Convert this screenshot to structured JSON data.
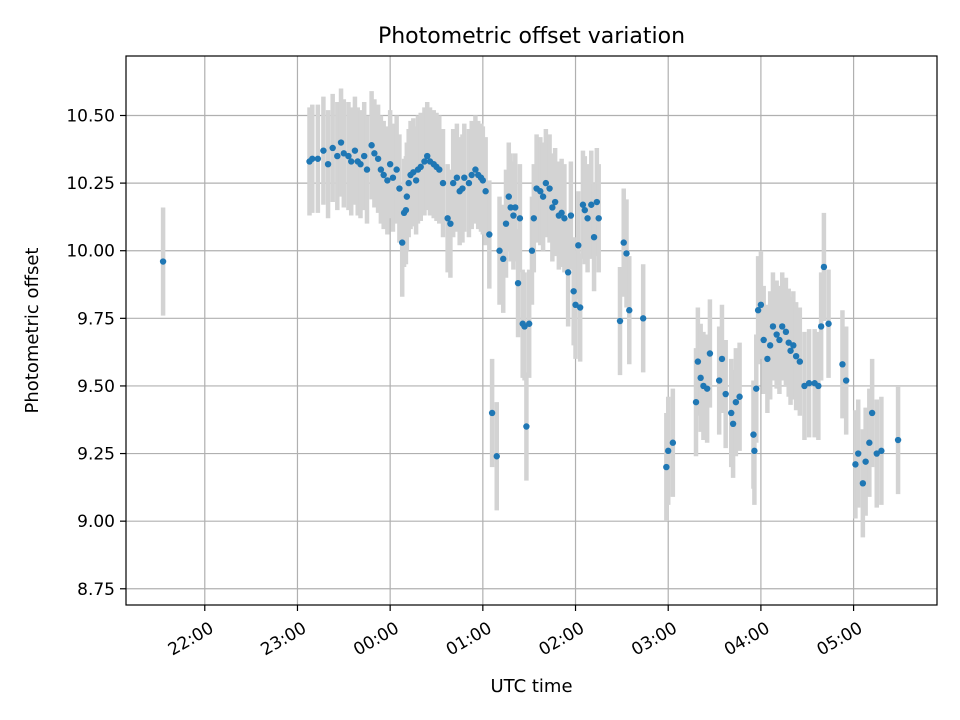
{
  "chart_data": {
    "type": "scatter",
    "title": "Photometric offset variation",
    "xlabel": "UTC time",
    "ylabel": "Photometric offset",
    "x_unit": "hours since 00:00 UTC",
    "xlim": [
      -2.85,
      5.9
    ],
    "ylim": [
      8.69,
      10.72
    ],
    "grid": true,
    "x_ticks": [
      -2,
      -1,
      0,
      1,
      2,
      3,
      4,
      5
    ],
    "x_tick_labels": [
      "22:00",
      "23:00",
      "00:00",
      "01:00",
      "02:00",
      "03:00",
      "04:00",
      "05:00"
    ],
    "y_ticks": [
      8.75,
      9.0,
      9.25,
      9.5,
      9.75,
      10.0,
      10.25,
      10.5
    ],
    "y_tick_labels": [
      "8.75",
      "9.00",
      "9.25",
      "9.50",
      "9.75",
      "10.00",
      "10.25",
      "10.50"
    ],
    "error_band": 0.2,
    "series": [
      {
        "name": "offset",
        "color": "#1f77b4",
        "error_color": "#d3d3d3",
        "x": [
          -2.45,
          -0.87,
          -0.84,
          -0.78,
          -0.72,
          -0.67,
          -0.62,
          -0.57,
          -0.53,
          -0.5,
          -0.45,
          -0.42,
          -0.38,
          -0.35,
          -0.32,
          -0.28,
          -0.25,
          -0.2,
          -0.17,
          -0.13,
          -0.1,
          -0.07,
          -0.03,
          0.0,
          0.03,
          0.07,
          0.1,
          0.13,
          0.15,
          0.17,
          0.18,
          0.2,
          0.22,
          0.25,
          0.28,
          0.3,
          0.33,
          0.37,
          0.4,
          0.43,
          0.47,
          0.5,
          0.53,
          0.57,
          0.62,
          0.65,
          0.68,
          0.72,
          0.75,
          0.78,
          0.8,
          0.85,
          0.88,
          0.92,
          0.95,
          0.98,
          1.0,
          1.03,
          1.07,
          1.1,
          1.15,
          1.18,
          1.22,
          1.25,
          1.28,
          1.3,
          1.33,
          1.35,
          1.38,
          1.4,
          1.43,
          1.45,
          1.47,
          1.5,
          1.53,
          1.55,
          1.58,
          1.62,
          1.65,
          1.68,
          1.72,
          1.75,
          1.78,
          1.82,
          1.85,
          1.88,
          1.92,
          1.95,
          1.98,
          2.0,
          2.03,
          2.05,
          2.08,
          2.1,
          2.13,
          2.17,
          2.2,
          2.23,
          2.25,
          2.48,
          2.52,
          2.55,
          2.58,
          2.73,
          2.98,
          3.0,
          3.05,
          3.3,
          3.32,
          3.35,
          3.38,
          3.42,
          3.45,
          3.55,
          3.58,
          3.62,
          3.68,
          3.7,
          3.73,
          3.77,
          3.92,
          3.93,
          3.95,
          3.97,
          4.0,
          4.03,
          4.07,
          4.1,
          4.13,
          4.17,
          4.2,
          4.23,
          4.27,
          4.3,
          4.32,
          4.35,
          4.38,
          4.42,
          4.47,
          4.52,
          4.58,
          4.62,
          4.65,
          4.68,
          4.73,
          4.88,
          4.92,
          5.02,
          5.05,
          5.1,
          5.13,
          5.17,
          5.2,
          5.25,
          5.3,
          5.48
        ],
        "y": [
          9.96,
          10.33,
          10.34,
          10.34,
          10.37,
          10.32,
          10.38,
          10.35,
          10.4,
          10.36,
          10.35,
          10.33,
          10.37,
          10.33,
          10.32,
          10.35,
          10.3,
          10.39,
          10.36,
          10.34,
          10.3,
          10.28,
          10.26,
          10.32,
          10.27,
          10.3,
          10.23,
          10.03,
          10.14,
          10.15,
          10.2,
          10.25,
          10.28,
          10.29,
          10.26,
          10.3,
          10.31,
          10.33,
          10.35,
          10.33,
          10.32,
          10.31,
          10.3,
          10.25,
          10.12,
          10.1,
          10.25,
          10.27,
          10.22,
          10.23,
          10.27,
          10.25,
          10.28,
          10.3,
          10.28,
          10.27,
          10.26,
          10.22,
          10.06,
          9.4,
          9.24,
          10.0,
          9.97,
          10.1,
          10.2,
          10.16,
          10.13,
          10.16,
          9.88,
          10.12,
          9.73,
          9.72,
          9.35,
          9.73,
          10.0,
          10.12,
          10.23,
          10.22,
          10.2,
          10.25,
          10.23,
          10.16,
          10.18,
          10.13,
          10.14,
          10.12,
          9.92,
          10.13,
          9.85,
          9.8,
          10.02,
          9.79,
          10.17,
          10.15,
          10.12,
          10.17,
          10.05,
          10.18,
          10.12,
          9.74,
          10.03,
          9.99,
          9.78,
          9.75,
          9.2,
          9.26,
          9.29,
          9.44,
          9.59,
          9.53,
          9.5,
          9.49,
          9.62,
          9.52,
          9.6,
          9.47,
          9.4,
          9.36,
          9.44,
          9.46,
          9.32,
          9.26,
          9.49,
          9.78,
          9.8,
          9.67,
          9.6,
          9.65,
          9.72,
          9.69,
          9.67,
          9.72,
          9.7,
          9.66,
          9.63,
          9.65,
          9.61,
          9.59,
          9.5,
          9.51,
          9.51,
          9.5,
          9.72,
          9.94,
          9.73,
          9.58,
          9.52,
          9.21,
          9.25,
          9.14,
          9.22,
          9.29,
          9.4,
          9.25,
          9.26,
          9.3
        ]
      }
    ]
  }
}
